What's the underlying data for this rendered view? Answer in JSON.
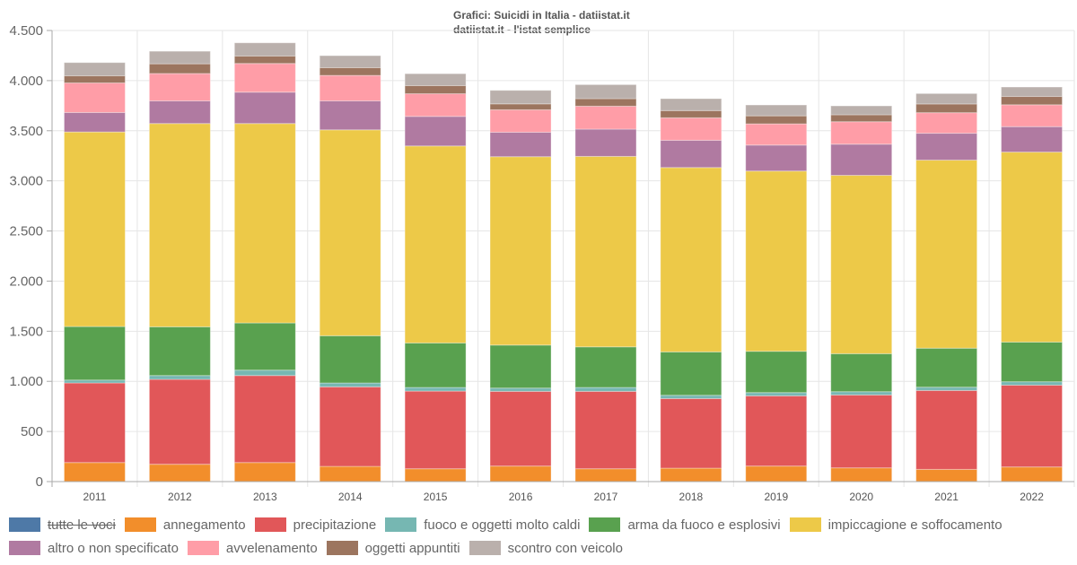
{
  "chart_data": {
    "type": "bar",
    "stacked": true,
    "title": "Grafici: Suicidi in Italia - datiistat.it",
    "subtitle": "datiistat.it - l'istat semplice",
    "xlabel": "",
    "ylabel": "",
    "ylim": [
      0,
      4500
    ],
    "yticks": [
      0,
      500,
      1000,
      1500,
      2000,
      2500,
      3000,
      3500,
      4000,
      4500
    ],
    "ytick_labels": [
      "0",
      "500",
      "1.000",
      "1.500",
      "2.000",
      "2.500",
      "3.000",
      "3.500",
      "4.000",
      "4.500"
    ],
    "grid": true,
    "legend_position": "bottom",
    "categories": [
      "2011",
      "2012",
      "2013",
      "2014",
      "2015",
      "2016",
      "2017",
      "2018",
      "2019",
      "2020",
      "2021",
      "2022"
    ],
    "series": [
      {
        "name": "tutte le voci",
        "color": "#4e79a7",
        "hidden": true,
        "values": []
      },
      {
        "name": "annegamento",
        "color": "#f28e2b",
        "values": [
          190,
          173,
          190,
          152,
          128,
          155,
          128,
          134,
          155,
          137,
          122,
          146
        ]
      },
      {
        "name": "precipitazione",
        "color": "#e15759",
        "values": [
          794,
          847,
          868,
          793,
          775,
          745,
          772,
          694,
          700,
          727,
          787,
          816
        ]
      },
      {
        "name": "fuoco e oggetti molto caldi",
        "color": "#76b7b2",
        "values": [
          29,
          38,
          54,
          39,
          36,
          33,
          39,
          33,
          33,
          33,
          33,
          34
        ]
      },
      {
        "name": "arma da fuoco e esplosivi",
        "color": "#59a14f",
        "values": [
          534,
          486,
          471,
          471,
          444,
          429,
          405,
          433,
          412,
          379,
          389,
          396
        ]
      },
      {
        "name": "impiccagione e soffocamento",
        "color": "#edc948",
        "values": [
          1941,
          2028,
          1989,
          2054,
          1965,
          1879,
          1900,
          1839,
          1798,
          1779,
          1876,
          1895
        ]
      },
      {
        "name": "altro o non specificato",
        "color": "#b07aa1",
        "values": [
          194,
          226,
          313,
          289,
          295,
          244,
          272,
          272,
          259,
          311,
          268,
          254
        ]
      },
      {
        "name": "avvelenamento",
        "color": "#ff9da7",
        "values": [
          295,
          273,
          286,
          254,
          226,
          224,
          229,
          224,
          212,
          224,
          205,
          218
        ]
      },
      {
        "name": "oggetti appuntiti",
        "color": "#9c755f",
        "values": [
          71,
          97,
          74,
          77,
          81,
          59,
          75,
          72,
          80,
          69,
          87,
          83
        ]
      },
      {
        "name": "scontro con veicolo",
        "color": "#bab0ac",
        "values": [
          132,
          125,
          132,
          120,
          119,
          135,
          140,
          119,
          108,
          89,
          104,
          94
        ]
      }
    ]
  },
  "colors": {
    "grid": "#e6e6e6",
    "axis": "#aaaaaa",
    "text": "#666666"
  }
}
